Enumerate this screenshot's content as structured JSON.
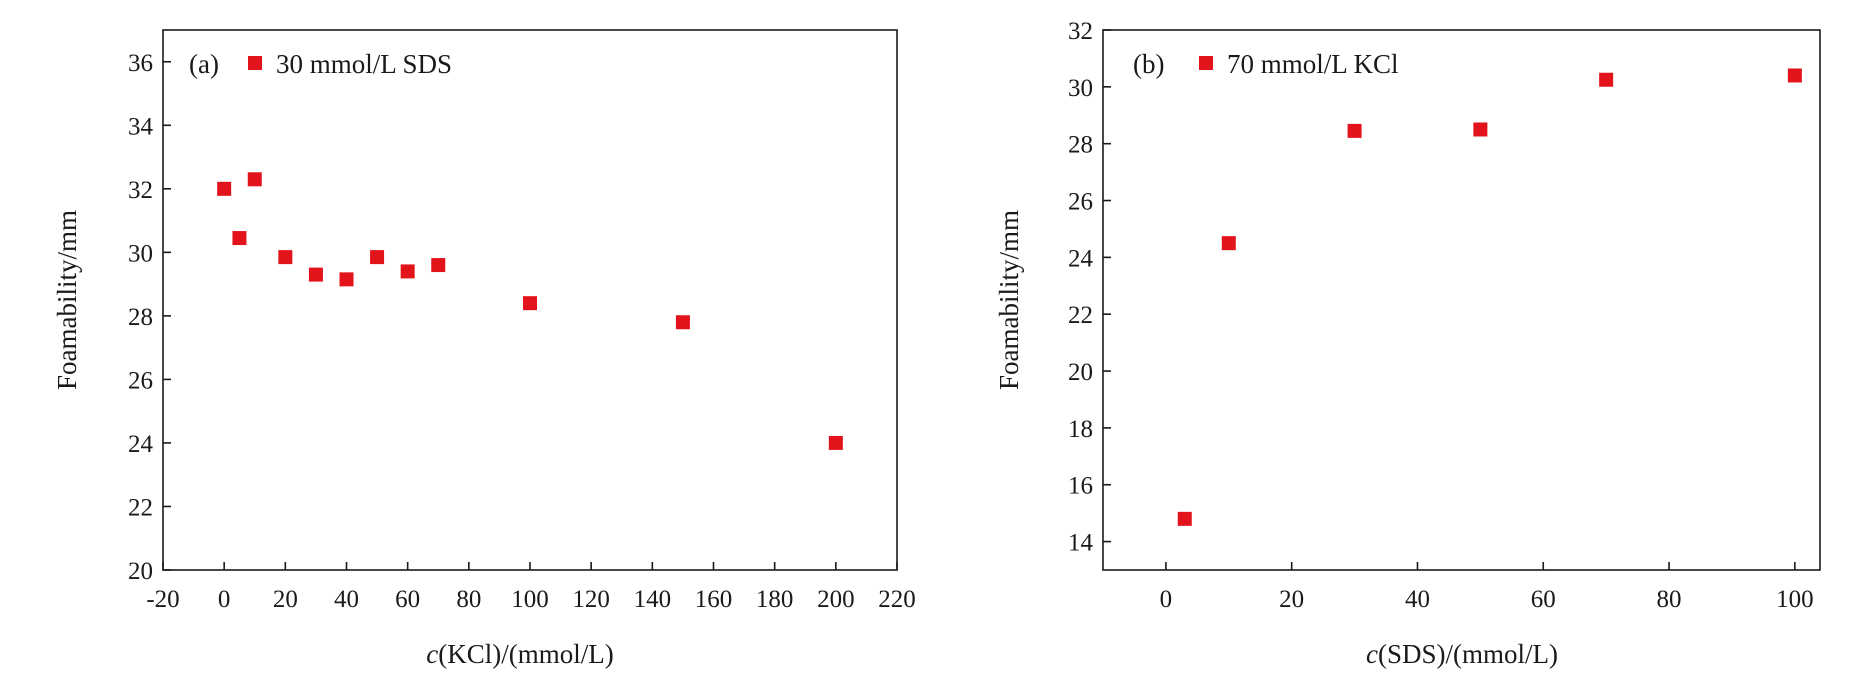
{
  "colors": {
    "marker": "#e3131b",
    "axis": "#1a1a1a"
  },
  "chart_data": [
    {
      "type": "scatter",
      "panel_label": "(a)",
      "xlabel": {
        "italic": "c",
        "rest": "(KCl)/(mmol/L)"
      },
      "ylabel": "Foamability/mm",
      "xlim": [
        -20,
        220
      ],
      "ylim": [
        20,
        37
      ],
      "xticks": [
        -20,
        0,
        20,
        40,
        60,
        80,
        100,
        120,
        140,
        160,
        180,
        200,
        220
      ],
      "yticks": [
        20,
        22,
        24,
        26,
        28,
        30,
        32,
        34,
        36
      ],
      "legend_position": "top-left",
      "grid": false,
      "series": [
        {
          "name": "30 mmol/L SDS",
          "marker": "square",
          "color": "#e3131b",
          "x": [
            0,
            5,
            10,
            20,
            30,
            40,
            50,
            60,
            70,
            100,
            150,
            200
          ],
          "y": [
            32.0,
            30.45,
            32.3,
            29.85,
            29.3,
            29.15,
            29.85,
            29.4,
            29.6,
            28.4,
            27.8,
            24.0
          ]
        }
      ]
    },
    {
      "type": "scatter",
      "panel_label": "(b)",
      "xlabel": {
        "italic": "c",
        "rest": "(SDS)/(mmol/L)"
      },
      "ylabel": "Foamability/mm",
      "xlim": [
        -10,
        104
      ],
      "ylim": [
        13,
        32
      ],
      "xticks": [
        0,
        20,
        40,
        60,
        80,
        100
      ],
      "yticks": [
        14,
        16,
        18,
        20,
        22,
        24,
        26,
        28,
        30,
        32
      ],
      "legend_position": "top-left",
      "grid": false,
      "series": [
        {
          "name": "70 mmol/L KCl",
          "marker": "square",
          "color": "#e3131b",
          "x": [
            3,
            10,
            30,
            50,
            70,
            100
          ],
          "y": [
            14.8,
            24.5,
            28.45,
            28.5,
            30.25,
            30.4
          ]
        }
      ]
    }
  ]
}
